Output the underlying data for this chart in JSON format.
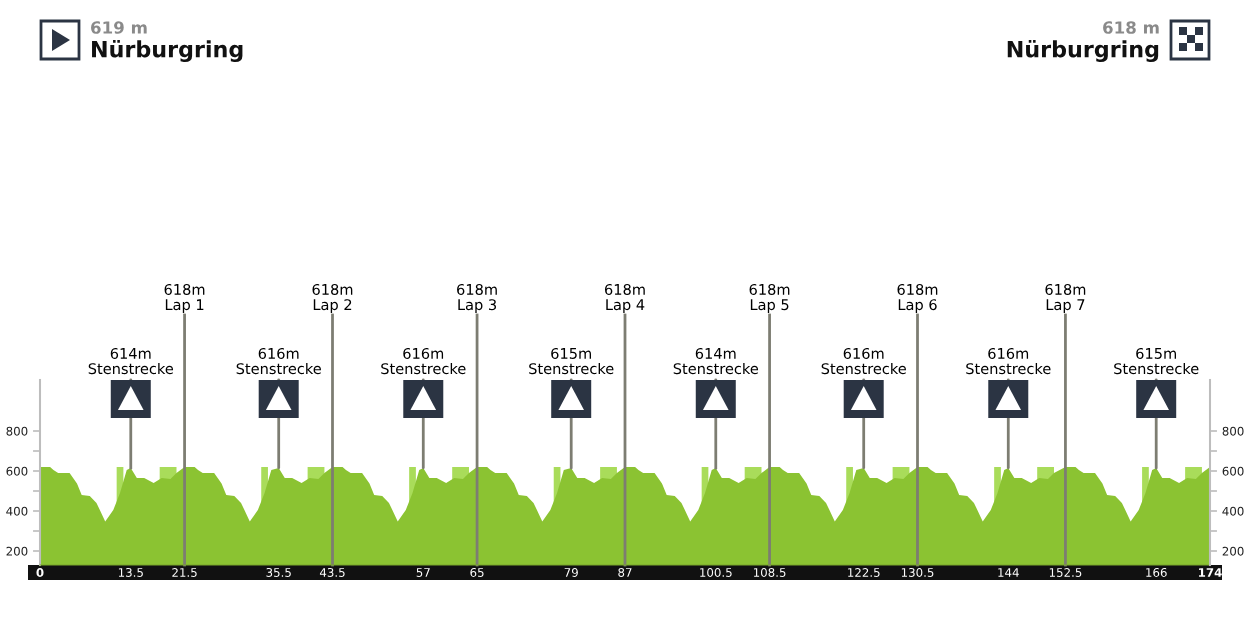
{
  "chart_data": {
    "type": "area",
    "title": "Nürburgring",
    "subtitle": "619 m",
    "annotations": [
      "618 m",
      "Nürburgring",
      {
        "text": "614m\nStenstrecke",
        "x": 13.5,
        "y": 614
      },
      {
        "text": "616m\nStenstrecke",
        "x": 35.5,
        "y": 616
      },
      {
        "text": "616m\nStenstrecke",
        "x": 57,
        "y": 616
      },
      {
        "text": "615m\nStenstrecke",
        "x": 79,
        "y": 615
      },
      {
        "text": "614m\nStenstrecke",
        "x": 100.5,
        "y": 614
      },
      {
        "text": "616m\nStenstrecke",
        "x": 122.5,
        "y": 616
      },
      {
        "text": "616m\nStenstrecke",
        "x": 144,
        "y": 616
      },
      {
        "text": "615m\nStenstrecke",
        "x": 166,
        "y": 615
      }
    ],
    "ref_lines": [
      {
        "axis": "x",
        "value": 21.5,
        "label": "618m\nLap 1"
      },
      {
        "axis": "x",
        "value": 43.5,
        "label": "618m\nLap 2"
      },
      {
        "axis": "x",
        "value": 65,
        "label": "618m\nLap 3"
      },
      {
        "axis": "x",
        "value": 87,
        "label": "618m\nLap 4"
      },
      {
        "axis": "x",
        "value": 108.5,
        "label": "618m\nLap 5"
      },
      {
        "axis": "x",
        "value": 130.5,
        "label": "618m\nLap 6"
      },
      {
        "axis": "x",
        "value": 152.5,
        "label": "618m\nLap 7"
      }
    ],
    "series": [
      {
        "color": "#a9dc5a",
        "x": [
          11.4,
          12.4,
          13,
          17.8,
          19,
          20.3,
          20.9,
          32.9,
          33.9,
          34.5,
          39.8,
          41,
          42.3,
          42.9,
          54.9,
          55.9,
          56.5,
          61.3,
          62.5,
          63.8,
          64.4,
          76.4,
          77.4,
          78,
          83.3,
          84.5,
          85.8,
          86.4,
          98.4,
          99.4,
          100,
          104.8,
          106,
          107.3,
          107.9,
          119.9,
          120.9,
          121.5,
          126.8,
          128,
          129.3,
          129.9,
          141.9,
          142.9,
          143.5,
          148.3,
          149.5,
          150.8,
          151.4,
          163.9,
          164.9,
          165.5,
          170.3,
          171.5,
          172.8
        ],
        "values": [
          620,
          620,
          null,
          620,
          620,
          620,
          null,
          620,
          620,
          null,
          620,
          620,
          620,
          null,
          620,
          620,
          null,
          620,
          620,
          620,
          null,
          620,
          620,
          null,
          620,
          620,
          620,
          null,
          620,
          620,
          null,
          620,
          620,
          620,
          null,
          620,
          620,
          null,
          620,
          620,
          620,
          null,
          620,
          620,
          null,
          620,
          620,
          620,
          null,
          620,
          620,
          null,
          620,
          620,
          620
        ]
      },
      {
        "color": "#8bc332",
        "x": [
          0,
          1.5,
          2,
          2.7,
          4.4,
          5.5,
          6.2,
          7.4,
          8.4,
          8.9,
          9.7,
          10.9,
          11.9,
          12.9,
          13.5,
          14.4,
          15.5,
          16.9,
          18.1,
          19.4,
          20.3,
          21.5,
          23,
          23.5,
          24.2,
          25.9,
          27,
          27.7,
          28.9,
          29.9,
          30.4,
          31.2,
          32.4,
          33.4,
          34.4,
          35.5,
          36.4,
          37.5,
          38.9,
          40.1,
          41.4,
          42.3,
          43.5,
          45,
          45.5,
          46.2,
          47.9,
          49,
          49.7,
          50.9,
          51.9,
          52.4,
          53.2,
          54.4,
          55.4,
          56.4,
          57,
          57.9,
          59,
          60.4,
          61.6,
          62.9,
          63.8,
          65,
          66.5,
          67,
          67.7,
          69.4,
          70.5,
          71.2,
          72.4,
          73.4,
          73.9,
          74.7,
          75.9,
          76.9,
          77.9,
          79,
          79.9,
          81,
          82.4,
          83.6,
          84.9,
          85.8,
          87,
          88.5,
          89,
          89.7,
          91.4,
          92.5,
          93.2,
          94.4,
          95.4,
          95.9,
          96.7,
          97.9,
          98.9,
          99.9,
          100.5,
          101.4,
          102.5,
          103.9,
          105.1,
          106.4,
          107.3,
          108.5,
          110,
          110.5,
          111.2,
          112.9,
          114,
          114.7,
          115.9,
          116.9,
          117.4,
          118.2,
          119.4,
          120.4,
          121.4,
          122.5,
          123.4,
          124.5,
          125.9,
          127.1,
          128.4,
          129.3,
          130.5,
          132,
          132.5,
          133.2,
          134.9,
          136,
          136.7,
          137.9,
          138.9,
          139.4,
          140.2,
          141.4,
          142.4,
          143.4,
          144,
          144.9,
          146,
          147.4,
          148.6,
          149.9,
          150.8,
          152.5,
          154,
          154.5,
          155.2,
          156.9,
          158,
          158.7,
          159.9,
          160.9,
          161.4,
          162.2,
          163.4,
          164.4,
          165.4,
          166,
          166.9,
          168,
          169.4,
          170.6,
          171.9,
          172.8,
          174
        ],
        "values": [
          620,
          620,
          605,
          590,
          590,
          538,
          480,
          475,
          440,
          405,
          347,
          405,
          490,
          605,
          615,
          565,
          565,
          540,
          565,
          560,
          590,
          620,
          620,
          605,
          590,
          590,
          538,
          480,
          475,
          440,
          405,
          347,
          405,
          490,
          605,
          615,
          565,
          565,
          540,
          565,
          560,
          590,
          620,
          620,
          605,
          590,
          590,
          538,
          480,
          475,
          440,
          405,
          347,
          405,
          490,
          605,
          615,
          565,
          565,
          540,
          565,
          560,
          590,
          620,
          620,
          605,
          590,
          590,
          538,
          480,
          475,
          440,
          405,
          347,
          405,
          490,
          605,
          615,
          565,
          565,
          540,
          565,
          560,
          590,
          620,
          620,
          605,
          590,
          590,
          538,
          480,
          475,
          440,
          405,
          347,
          405,
          490,
          605,
          615,
          565,
          565,
          540,
          565,
          560,
          590,
          620,
          620,
          605,
          590,
          590,
          538,
          480,
          475,
          440,
          405,
          347,
          405,
          490,
          605,
          615,
          565,
          565,
          540,
          565,
          560,
          590,
          620,
          620,
          605,
          590,
          590,
          538,
          480,
          475,
          440,
          405,
          347,
          405,
          490,
          605,
          615,
          565,
          565,
          540,
          565,
          560,
          590,
          620,
          620,
          605,
          590,
          590,
          538,
          480,
          475,
          440,
          405,
          347,
          405,
          490,
          605,
          615,
          565,
          565,
          540,
          565,
          560,
          590,
          620
        ]
      }
    ],
    "xlim": [
      0,
      174
    ],
    "xticks": [
      0,
      13.5,
      21.5,
      35.5,
      43.5,
      57,
      65,
      79,
      87,
      100.5,
      108.5,
      122.5,
      130.5,
      144,
      152.5,
      166,
      174
    ],
    "ylim": [
      130,
      1055
    ],
    "yticks": [
      200,
      {
        "value": 300,
        "label": null
      },
      400,
      {
        "value": 500,
        "label": null
      },
      600,
      {
        "value": 700,
        "label": null
      },
      800
    ],
    "y2lim": [
      130,
      1055
    ],
    "y2ticks": [
      200,
      {
        "value": 300,
        "label": null
      },
      400,
      {
        "value": 500,
        "label": null
      },
      600,
      {
        "value": 700,
        "label": null
      },
      800
    ]
  }
}
